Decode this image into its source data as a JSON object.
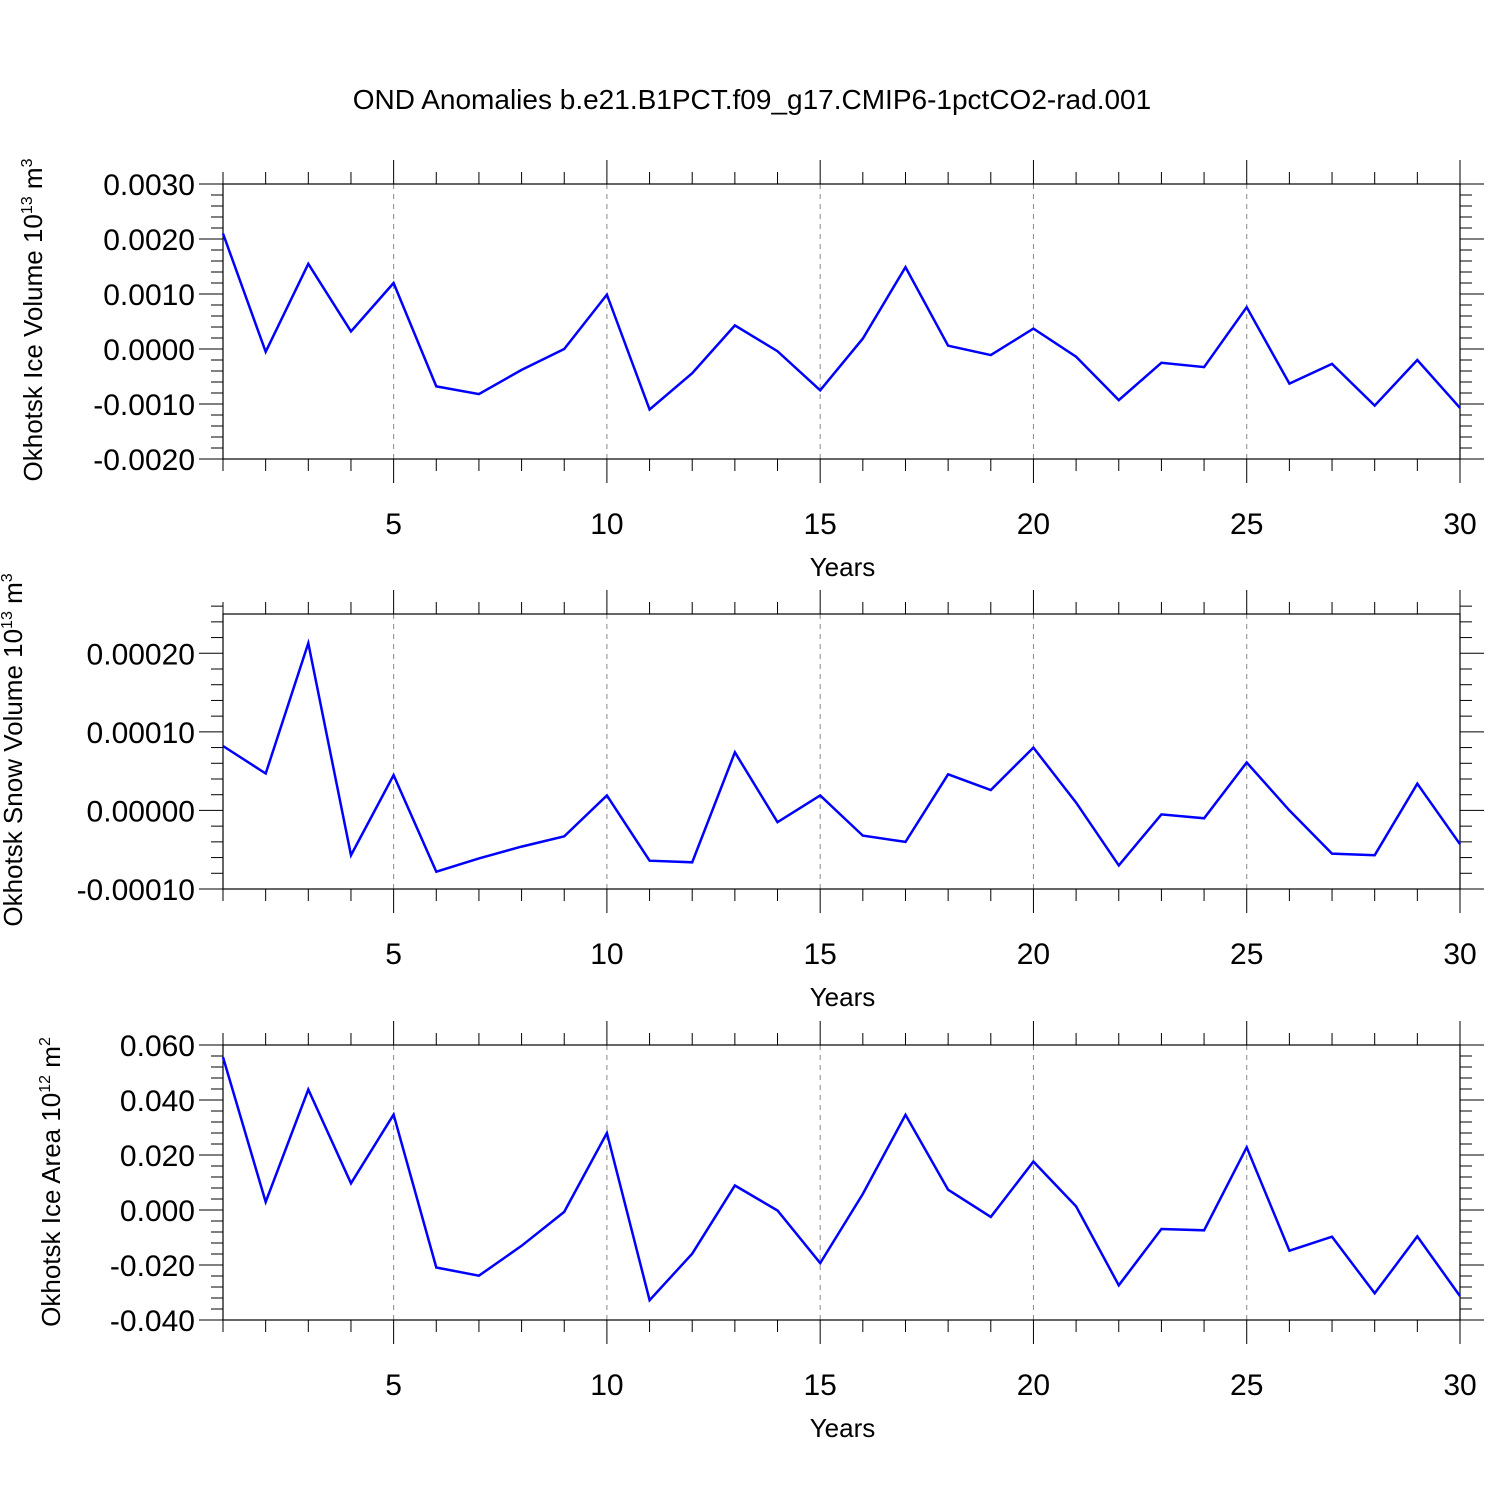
{
  "title": "OND Anomalies b.e21.B1PCT.f09_g17.CMIP6-1pctCO2-rad.001",
  "chart_data": [
    {
      "type": "line",
      "ylabel_main": "Okhotsk Ice Volume 10",
      "ylabel_exp": "13",
      "ylabel_unit": "m",
      "ylabel_unit_exp": "3",
      "xlabel": "Years",
      "xlim": [
        1,
        30
      ],
      "ylim": [
        -0.002,
        0.003
      ],
      "yticks": [
        -0.002,
        -0.001,
        0.0,
        0.001,
        0.002,
        0.003
      ],
      "ytick_labels": [
        "-0.0020",
        "-0.0010",
        "0.0000",
        "0.0010",
        "0.0020",
        "0.0030"
      ],
      "xticks": [
        5,
        10,
        15,
        20,
        25,
        30
      ],
      "xtick_labels": [
        "5",
        "10",
        "15",
        "20",
        "25",
        "30"
      ],
      "line_color": "#0000ff",
      "x": [
        1,
        2,
        3,
        4,
        5,
        6,
        7,
        8,
        9,
        10,
        11,
        12,
        13,
        14,
        15,
        16,
        17,
        18,
        19,
        20,
        21,
        22,
        23,
        24,
        25,
        26,
        27,
        28,
        29,
        30
      ],
      "values": [
        0.0021,
        -5e-05,
        0.00155,
        0.00032,
        0.0012,
        -0.00068,
        -0.00082,
        -0.00038,
        0.0,
        0.00099,
        -0.0011,
        -0.00044,
        0.00043,
        -4e-05,
        -0.00075,
        0.00019,
        0.00149,
        6e-05,
        -0.00011,
        0.00037,
        -0.00014,
        -0.00093,
        -0.00025,
        -0.00033,
        0.00076,
        -0.00063,
        -0.00027,
        -0.00103,
        -0.0002,
        -0.00107
      ]
    },
    {
      "type": "line",
      "ylabel_main": "Okhotsk Snow Volume 10",
      "ylabel_exp": "13",
      "ylabel_unit": "m",
      "ylabel_unit_exp": "3",
      "xlabel": "Years",
      "xlim": [
        1,
        30
      ],
      "ylim": [
        -0.0001,
        0.00025
      ],
      "yticks": [
        -0.0001,
        0.0,
        0.0001,
        0.0002
      ],
      "ytick_labels": [
        "-0.00010",
        "0.00000",
        "0.00010",
        "0.00020"
      ],
      "xticks": [
        5,
        10,
        15,
        20,
        25,
        30
      ],
      "xtick_labels": [
        "5",
        "10",
        "15",
        "20",
        "25",
        "30"
      ],
      "line_color": "#0000ff",
      "x": [
        1,
        2,
        3,
        4,
        5,
        6,
        7,
        8,
        9,
        10,
        11,
        12,
        13,
        14,
        15,
        16,
        17,
        18,
        19,
        20,
        21,
        22,
        23,
        24,
        25,
        26,
        27,
        28,
        29,
        30
      ],
      "values": [
        8.2e-05,
        4.7e-05,
        0.000213,
        -5.7e-05,
        4.5e-05,
        -7.8e-05,
        -6.1e-05,
        -4.6e-05,
        -3.3e-05,
        1.9e-05,
        -6.4e-05,
        -6.6e-05,
        7.4e-05,
        -1.5e-05,
        1.9e-05,
        -3.2e-05,
        -4e-05,
        4.6e-05,
        2.6e-05,
        8e-05,
        1e-05,
        -7e-05,
        -5e-06,
        -1e-05,
        6.1e-05,
        0.0,
        -5.5e-05,
        -5.7e-05,
        3.4e-05,
        -4.3e-05
      ]
    },
    {
      "type": "line",
      "ylabel_main": "Okhotsk Ice Area 10",
      "ylabel_exp": "12",
      "ylabel_unit": "m",
      "ylabel_unit_exp": "2",
      "xlabel": "Years",
      "xlim": [
        1,
        30
      ],
      "ylim": [
        -0.04,
        0.06
      ],
      "yticks": [
        -0.04,
        -0.02,
        0.0,
        0.02,
        0.04,
        0.06
      ],
      "ytick_labels": [
        "-0.040",
        "-0.020",
        "0.000",
        "0.020",
        "0.040",
        "0.060"
      ],
      "xticks": [
        5,
        10,
        15,
        20,
        25,
        30
      ],
      "xtick_labels": [
        "5",
        "10",
        "15",
        "20",
        "25",
        "30"
      ],
      "line_color": "#0000ff",
      "x": [
        1,
        2,
        3,
        4,
        5,
        6,
        7,
        8,
        9,
        10,
        11,
        12,
        13,
        14,
        15,
        16,
        17,
        18,
        19,
        20,
        21,
        22,
        23,
        24,
        25,
        26,
        27,
        28,
        29,
        30
      ],
      "values": [
        0.0556,
        0.0029,
        0.0438,
        0.0097,
        0.0347,
        -0.0209,
        -0.0239,
        -0.013,
        -0.0007,
        0.028,
        -0.0328,
        -0.0159,
        0.0089,
        -0.0002,
        -0.0193,
        0.0058,
        0.0346,
        0.0074,
        -0.0025,
        0.0176,
        0.0013,
        -0.0274,
        -0.0069,
        -0.0074,
        0.0228,
        -0.0148,
        -0.0097,
        -0.0303,
        -0.0096,
        -0.0313
      ]
    }
  ]
}
